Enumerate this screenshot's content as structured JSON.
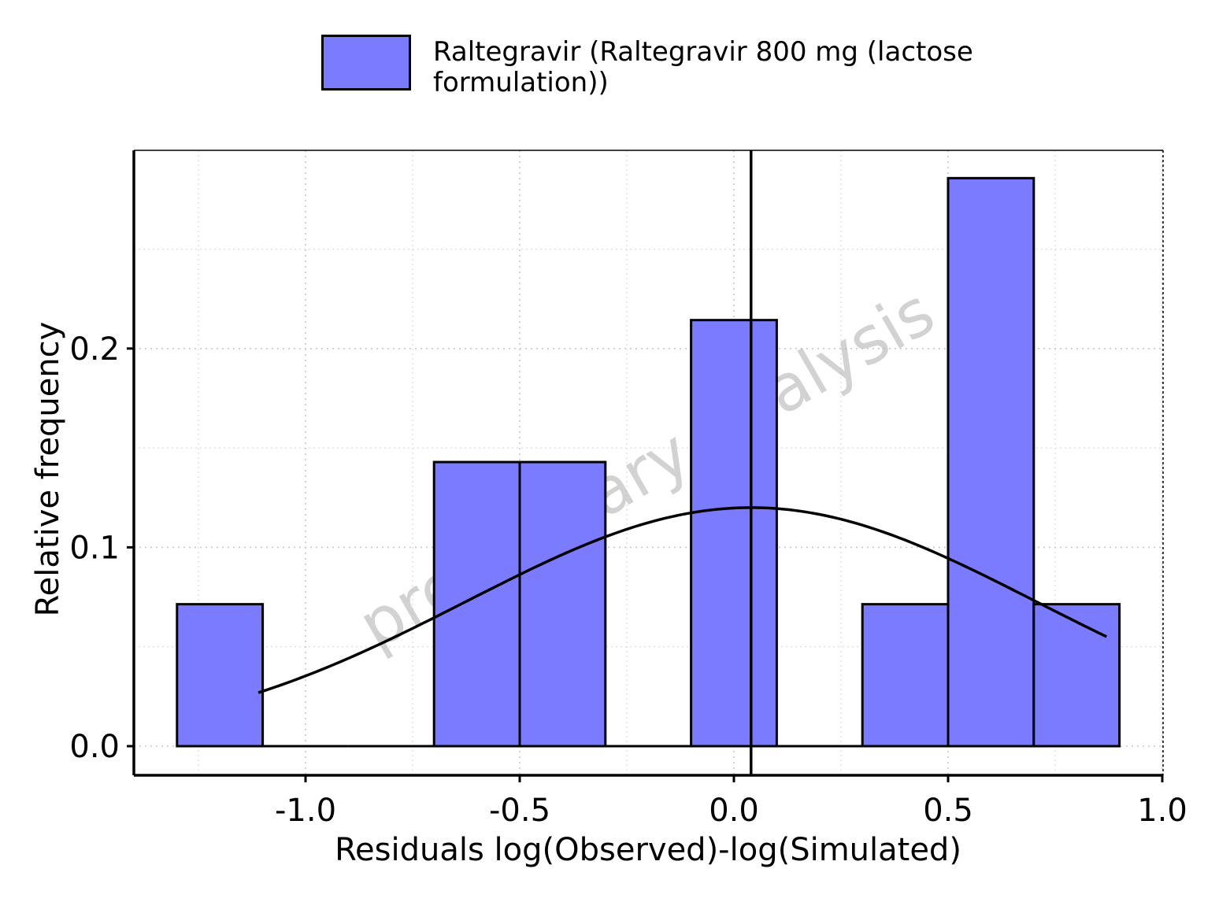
{
  "chart_data": {
    "type": "histogram",
    "xlabel": "Residuals log(Observed)-log(Simulated)",
    "ylabel": "Relative frequency",
    "xlim": [
      -1.4,
      1.0
    ],
    "ylim": [
      -0.014,
      0.3
    ],
    "x_ticks": [
      -1.0,
      -0.5,
      0.0,
      0.5,
      1.0
    ],
    "x_tick_labels": [
      "-1.0",
      "-0.5",
      "0.0",
      "0.5",
      "1.0"
    ],
    "y_ticks": [
      0.0,
      0.1,
      0.2
    ],
    "y_tick_labels": [
      "0.0",
      "0.1",
      "0.2"
    ],
    "grid": true,
    "legend_position": "top",
    "series": [
      {
        "name": "Raltegravir (Raltegravir 800 mg (lactose formulation))",
        "color": "#7b7bff",
        "bins": [
          {
            "x0": -1.3,
            "x1": -1.1,
            "value": 0.0714
          },
          {
            "x0": -1.1,
            "x1": -0.9,
            "value": 0.0
          },
          {
            "x0": -0.9,
            "x1": -0.7,
            "value": 0.0
          },
          {
            "x0": -0.7,
            "x1": -0.5,
            "value": 0.1429
          },
          {
            "x0": -0.5,
            "x1": -0.3,
            "value": 0.1429
          },
          {
            "x0": -0.3,
            "x1": -0.1,
            "value": 0.0
          },
          {
            "x0": -0.1,
            "x1": 0.1,
            "value": 0.2143
          },
          {
            "x0": 0.1,
            "x1": 0.3,
            "value": 0.0
          },
          {
            "x0": 0.3,
            "x1": 0.5,
            "value": 0.0714
          },
          {
            "x0": 0.5,
            "x1": 0.7,
            "value": 0.2857
          },
          {
            "x0": 0.7,
            "x1": 0.9,
            "value": 0.0714
          }
        ]
      }
    ],
    "normal_curve": {
      "mean": 0.04,
      "sd": 0.665,
      "scale": 0.2,
      "x_range": [
        -1.11,
        0.87
      ]
    },
    "vline": {
      "x": 0.04
    },
    "watermark": "preliminary analysis"
  }
}
